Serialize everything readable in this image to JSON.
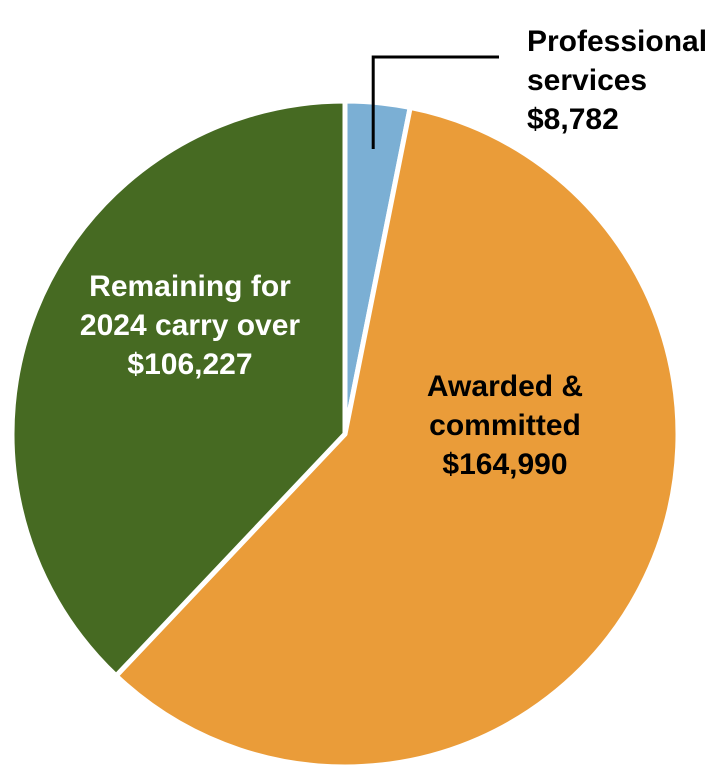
{
  "chart_data": {
    "type": "pie",
    "slices": [
      {
        "label_lines": [
          "Professional",
          "services",
          "$8,782"
        ],
        "value": 8782,
        "color": "#7bafd4",
        "label_color": "#000000",
        "label_placement": "outside-top-right"
      },
      {
        "label_lines": [
          "Awarded &",
          "committed",
          "$164,990"
        ],
        "value": 164990,
        "color": "#ea9c39",
        "label_color": "#000000",
        "label_placement": "inside"
      },
      {
        "label_lines": [
          "Remaining for",
          "2024 carry over",
          "$106,227"
        ],
        "value": 106227,
        "color": "#466a22",
        "label_color": "#ffffff",
        "label_placement": "inside"
      }
    ],
    "start_angle": "12 o'clock",
    "direction": "clockwise",
    "legend": "none"
  }
}
